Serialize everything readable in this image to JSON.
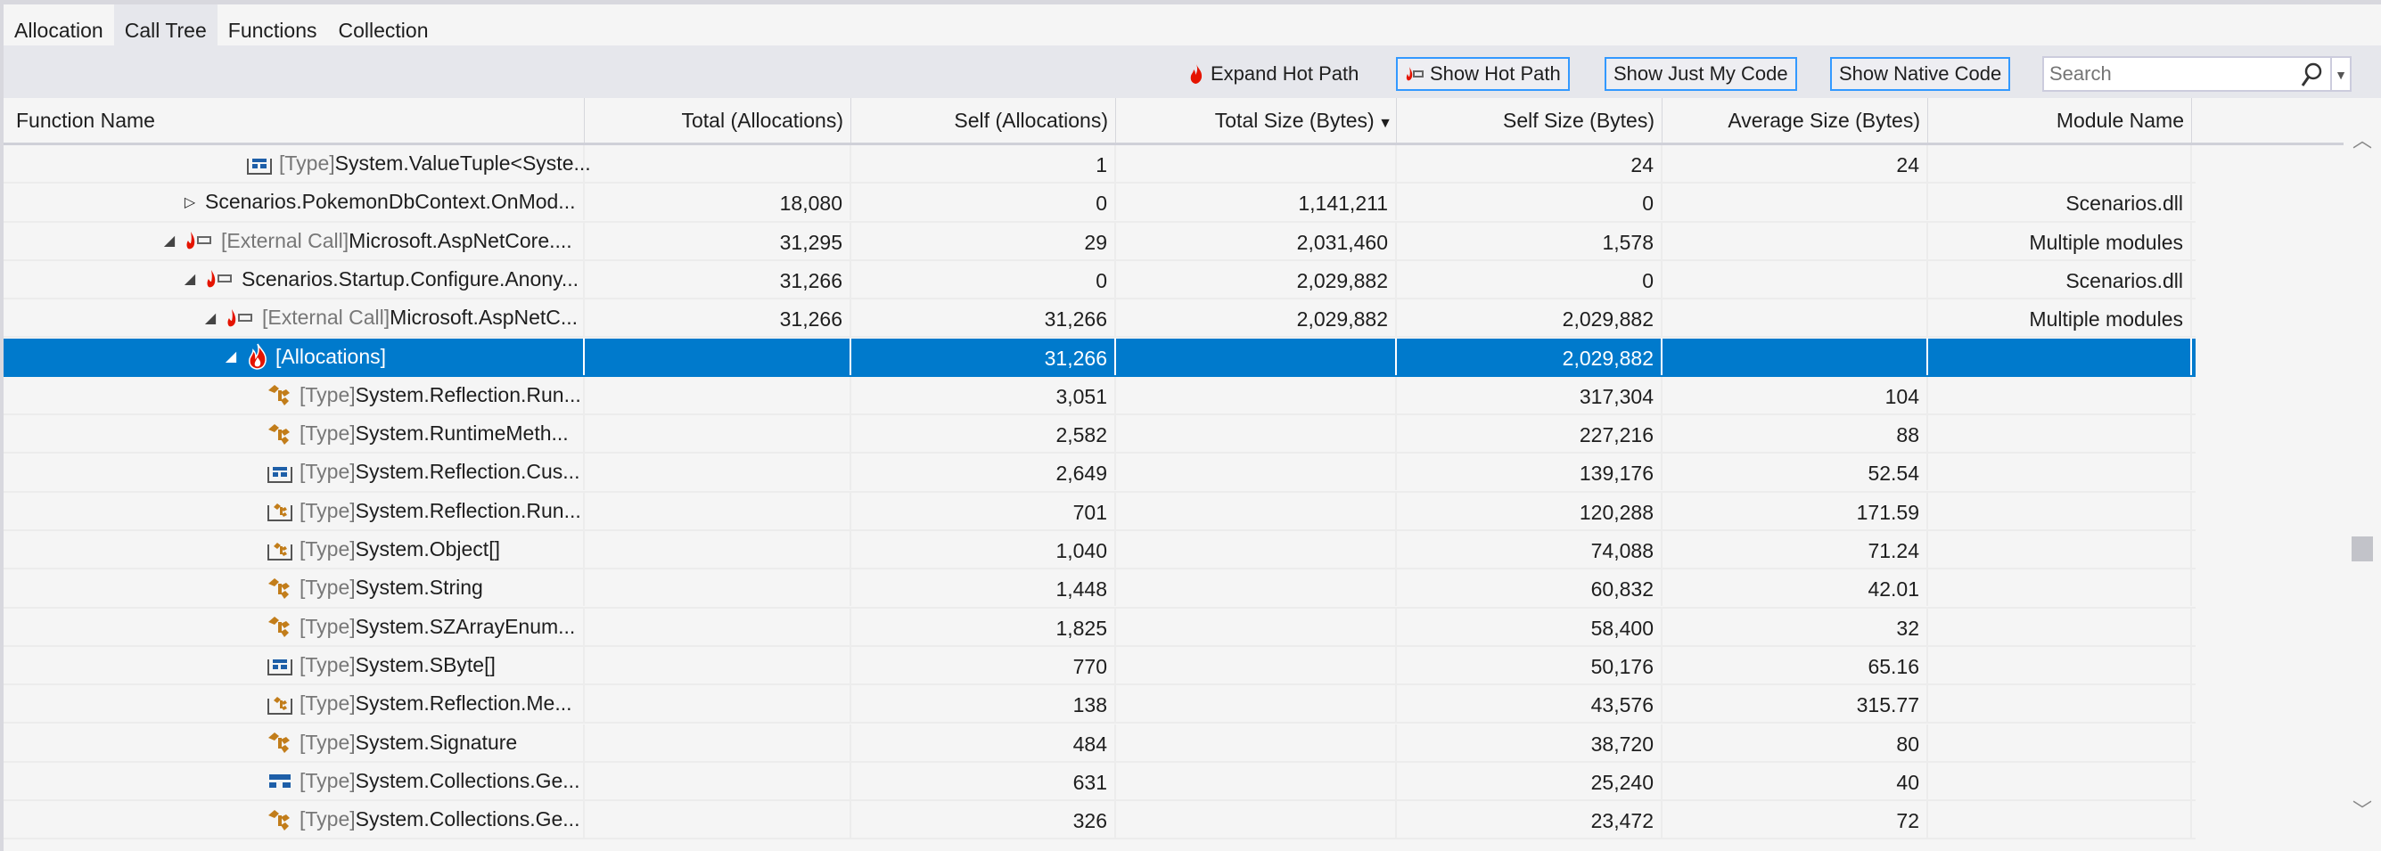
{
  "tabs": [
    {
      "label": "Allocation"
    },
    {
      "label": "Call Tree",
      "active": true
    },
    {
      "label": "Functions"
    },
    {
      "label": "Collection"
    }
  ],
  "toolbar": {
    "expand_hot_path": "Expand Hot Path",
    "show_hot_path": "Show Hot Path",
    "show_just_my_code": "Show Just My Code",
    "show_native_code": "Show Native Code",
    "search_placeholder": "Search"
  },
  "columns": [
    "Function Name",
    "Total (Allocations)",
    "Self (Allocations)",
    "Total Size (Bytes)",
    "Self Size (Bytes)",
    "Average Size (Bytes)",
    "Module Name"
  ],
  "sort": {
    "column": "Total Size (Bytes)",
    "direction": "descending"
  },
  "colors": {
    "accent": "#007acc",
    "selection": "#007acc",
    "hot": "#e51400",
    "type_class": "#c27d1a",
    "type_struct": "#1e5fa8"
  },
  "rows": [
    {
      "level": 5,
      "expander": "none",
      "icon": "struct-array",
      "prefix": "[Type]",
      "name": "System.ValueTuple<Syste...",
      "total_alloc": "",
      "self_alloc": "1",
      "total_size": "",
      "self_size": "24",
      "avg_size": "24",
      "module": ""
    },
    {
      "level": 3,
      "expander": "collapsed",
      "icon": "none",
      "prefix": "",
      "name": "Scenarios.PokemonDbContext.OnMod...",
      "total_alloc": "18,080",
      "self_alloc": "0",
      "total_size": "1,141,211",
      "self_size": "0",
      "avg_size": "",
      "module": "Scenarios.dll"
    },
    {
      "level": 2,
      "expander": "expanded",
      "icon": "hot-path",
      "prefix": "[External Call]",
      "name": "Microsoft.AspNetCore....",
      "total_alloc": "31,295",
      "self_alloc": "29",
      "total_size": "2,031,460",
      "self_size": "1,578",
      "avg_size": "",
      "module": "Multiple modules"
    },
    {
      "level": 3,
      "expander": "expanded",
      "icon": "hot-path",
      "prefix": "",
      "name": "Scenarios.Startup.Configure.Anony...",
      "total_alloc": "31,266",
      "self_alloc": "0",
      "total_size": "2,029,882",
      "self_size": "0",
      "avg_size": "",
      "module": "Scenarios.dll"
    },
    {
      "level": 4,
      "expander": "expanded",
      "icon": "hot-path",
      "prefix": "[External Call]",
      "name": "Microsoft.AspNetC...",
      "total_alloc": "31,266",
      "self_alloc": "31,266",
      "total_size": "2,029,882",
      "self_size": "2,029,882",
      "avg_size": "",
      "module": "Multiple modules"
    },
    {
      "level": 5,
      "expander": "expanded",
      "icon": "flame",
      "prefix": "",
      "name": "[Allocations]",
      "total_alloc": "",
      "self_alloc": "31,266",
      "total_size": "",
      "self_size": "2,029,882",
      "avg_size": "",
      "module": "",
      "selected": true
    },
    {
      "level": 6,
      "expander": "none",
      "icon": "class",
      "prefix": "[Type]",
      "name": "System.Reflection.Run...",
      "total_alloc": "",
      "self_alloc": "3,051",
      "total_size": "",
      "self_size": "317,304",
      "avg_size": "104",
      "module": ""
    },
    {
      "level": 6,
      "expander": "none",
      "icon": "class",
      "prefix": "[Type]",
      "name": "System.RuntimeMeth...",
      "total_alloc": "",
      "self_alloc": "2,582",
      "total_size": "",
      "self_size": "227,216",
      "avg_size": "88",
      "module": ""
    },
    {
      "level": 6,
      "expander": "none",
      "icon": "struct-array",
      "prefix": "[Type]",
      "name": "System.Reflection.Cus...",
      "total_alloc": "",
      "self_alloc": "2,649",
      "total_size": "",
      "self_size": "139,176",
      "avg_size": "52.54",
      "module": ""
    },
    {
      "level": 6,
      "expander": "none",
      "icon": "class-array",
      "prefix": "[Type]",
      "name": "System.Reflection.Run...",
      "total_alloc": "",
      "self_alloc": "701",
      "total_size": "",
      "self_size": "120,288",
      "avg_size": "171.59",
      "module": ""
    },
    {
      "level": 6,
      "expander": "none",
      "icon": "class-array",
      "prefix": "[Type]",
      "name": "System.Object[]",
      "total_alloc": "",
      "self_alloc": "1,040",
      "total_size": "",
      "self_size": "74,088",
      "avg_size": "71.24",
      "module": ""
    },
    {
      "level": 6,
      "expander": "none",
      "icon": "class",
      "prefix": "[Type]",
      "name": "System.String",
      "total_alloc": "",
      "self_alloc": "1,448",
      "total_size": "",
      "self_size": "60,832",
      "avg_size": "42.01",
      "module": ""
    },
    {
      "level": 6,
      "expander": "none",
      "icon": "class",
      "prefix": "[Type]",
      "name": "System.SZArrayEnum...",
      "total_alloc": "",
      "self_alloc": "1,825",
      "total_size": "",
      "self_size": "58,400",
      "avg_size": "32",
      "module": ""
    },
    {
      "level": 6,
      "expander": "none",
      "icon": "struct-array",
      "prefix": "[Type]",
      "name": "System.SByte[]",
      "total_alloc": "",
      "self_alloc": "770",
      "total_size": "",
      "self_size": "50,176",
      "avg_size": "65.16",
      "module": ""
    },
    {
      "level": 6,
      "expander": "none",
      "icon": "class-array",
      "prefix": "[Type]",
      "name": "System.Reflection.Me...",
      "total_alloc": "",
      "self_alloc": "138",
      "total_size": "",
      "self_size": "43,576",
      "avg_size": "315.77",
      "module": ""
    },
    {
      "level": 6,
      "expander": "none",
      "icon": "class",
      "prefix": "[Type]",
      "name": "System.Signature",
      "total_alloc": "",
      "self_alloc": "484",
      "total_size": "",
      "self_size": "38,720",
      "avg_size": "80",
      "module": ""
    },
    {
      "level": 6,
      "expander": "none",
      "icon": "struct",
      "prefix": "[Type]",
      "name": "System.Collections.Ge...",
      "total_alloc": "",
      "self_alloc": "631",
      "total_size": "",
      "self_size": "25,240",
      "avg_size": "40",
      "module": ""
    },
    {
      "level": 6,
      "expander": "none",
      "icon": "class",
      "prefix": "[Type]",
      "name": "System.Collections.Ge...",
      "total_alloc": "",
      "self_alloc": "326",
      "total_size": "",
      "self_size": "23,472",
      "avg_size": "72",
      "module": ""
    }
  ]
}
